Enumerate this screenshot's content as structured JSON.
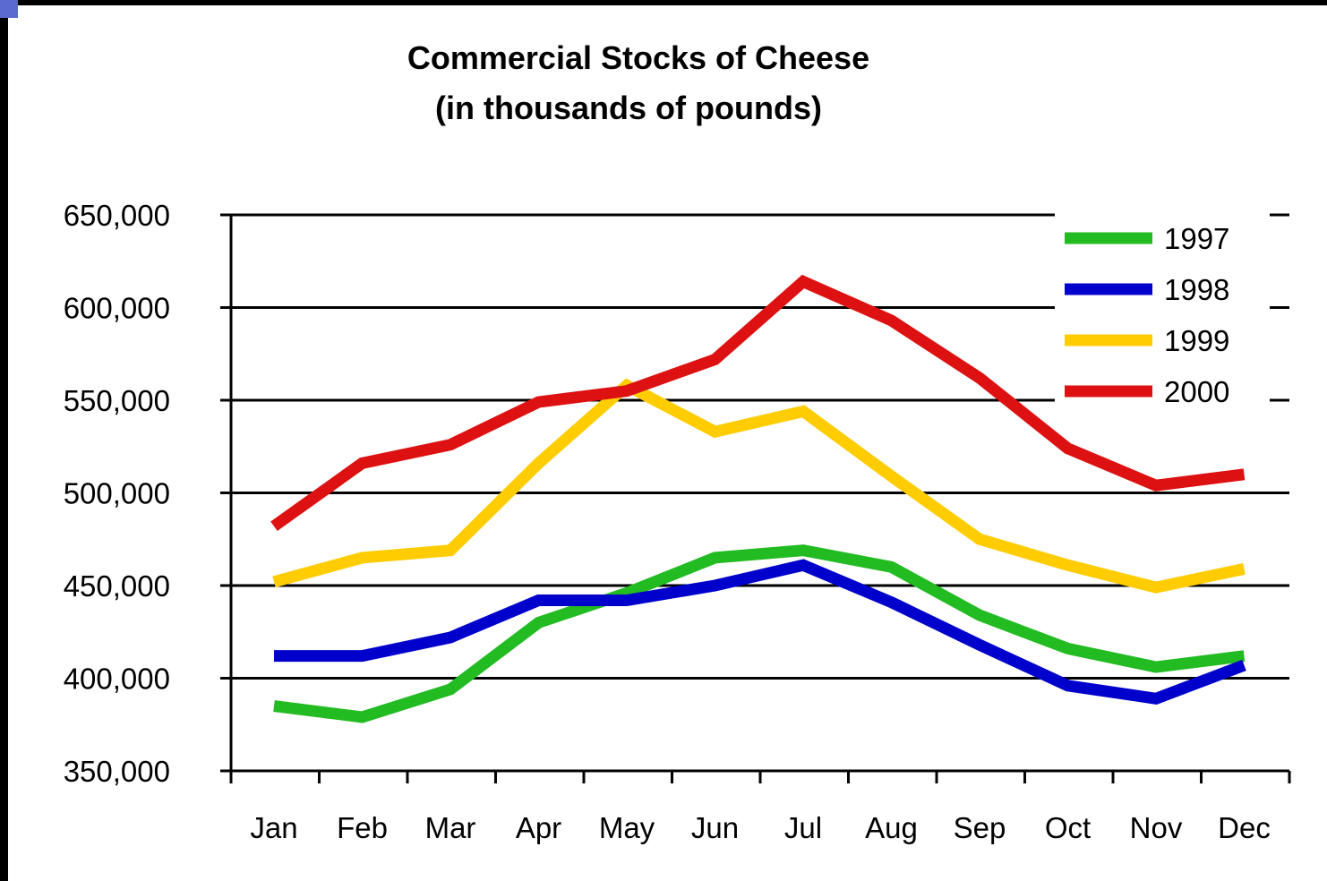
{
  "chart_data": {
    "type": "line",
    "title": "Commercial Stocks of Cheese",
    "subtitle": "(in thousands of pounds)",
    "xlabel": "",
    "ylabel": "",
    "categories": [
      "Jan",
      "Feb",
      "Mar",
      "Apr",
      "May",
      "Jun",
      "Jul",
      "Aug",
      "Sep",
      "Oct",
      "Nov",
      "Dec"
    ],
    "ylim": [
      350000,
      650000
    ],
    "yticks": [
      350000,
      400000,
      450000,
      500000,
      550000,
      600000,
      650000
    ],
    "ytick_labels": [
      "350,000",
      "400,000",
      "450,000",
      "500,000",
      "550,000",
      "600,000",
      "650,000"
    ],
    "grid": true,
    "legend_position": "top-right",
    "series": [
      {
        "name": "1997",
        "color": "#22bb22",
        "values": [
          385000,
          379000,
          394000,
          430000,
          446000,
          465000,
          469000,
          460000,
          434000,
          416000,
          406000,
          412000
        ]
      },
      {
        "name": "1998",
        "color": "#0000cc",
        "values": [
          412000,
          412000,
          422000,
          442000,
          442000,
          450000,
          461000,
          441000,
          418000,
          396000,
          389000,
          407000
        ]
      },
      {
        "name": "1999",
        "color": "#ffcc00",
        "values": [
          452000,
          465000,
          469000,
          516000,
          558000,
          533000,
          544000,
          509000,
          475000,
          461000,
          449000,
          459000
        ]
      },
      {
        "name": "2000",
        "color": "#dd1111",
        "values": [
          482000,
          516000,
          526000,
          549000,
          555000,
          572000,
          614000,
          593000,
          562000,
          524000,
          504000,
          510000
        ]
      }
    ]
  }
}
